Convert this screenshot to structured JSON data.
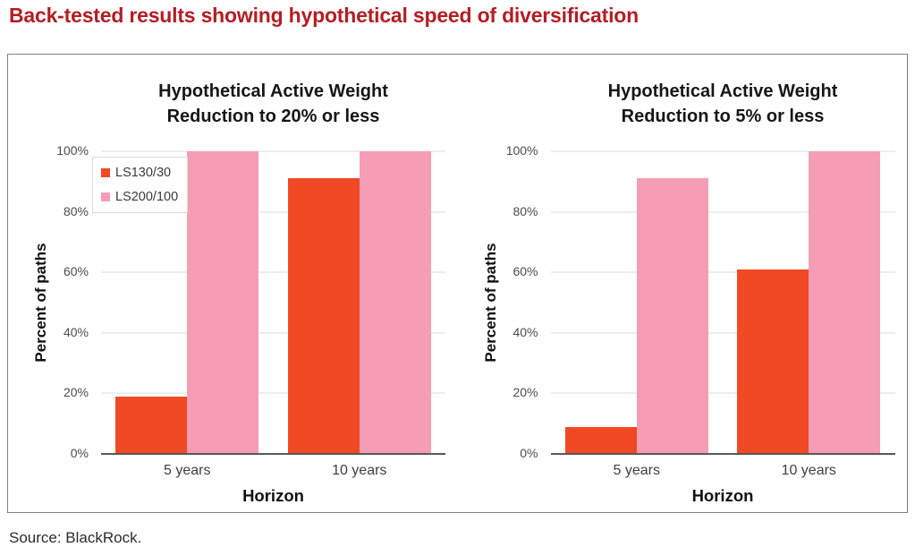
{
  "page": {
    "title": "Back-tested results showing hypothetical speed of diversification",
    "title_color": "#b21e24",
    "source": "Source: BlackRock."
  },
  "colors": {
    "ls130": "#f04923",
    "ls200": "#f49db5",
    "grid": "#ededef",
    "axis": "#57585a"
  },
  "chart_data": [
    {
      "type": "bar",
      "title_lines": [
        "Hypothetical Active Weight",
        "Reduction to 20% or less"
      ],
      "categories": [
        "5 years",
        "10 years"
      ],
      "series": [
        {
          "name": "LS130/30",
          "color": "#f04923",
          "values": [
            19,
            91
          ]
        },
        {
          "name": "LS200/100",
          "color": "#f49db5",
          "values": [
            100,
            100
          ]
        }
      ],
      "xlabel": "Horizon",
      "ylabel": "Percent of paths",
      "ylim": [
        0,
        100
      ],
      "yticks": [
        {
          "label": "0%",
          "value": 0
        },
        {
          "label": "20%",
          "value": 20
        },
        {
          "label": "40%",
          "value": 40
        },
        {
          "label": "60%",
          "value": 60
        },
        {
          "label": "80%",
          "value": 80
        },
        {
          "label": "100%",
          "value": 100
        }
      ],
      "grid": true,
      "legend": true,
      "legend_position": "upper-left"
    },
    {
      "type": "bar",
      "title_lines": [
        "Hypothetical Active Weight",
        "Reduction to 5% or less"
      ],
      "categories": [
        "5 years",
        "10 years"
      ],
      "series": [
        {
          "name": "LS130/30",
          "color": "#f04923",
          "values": [
            9,
            61
          ]
        },
        {
          "name": "LS200/100",
          "color": "#f49db5",
          "values": [
            91,
            100
          ]
        }
      ],
      "xlabel": "Horizon",
      "ylabel": "Percent of paths",
      "ylim": [
        0,
        100
      ],
      "yticks": [
        {
          "label": "0%",
          "value": 0
        },
        {
          "label": "20%",
          "value": 20
        },
        {
          "label": "40%",
          "value": 40
        },
        {
          "label": "60%",
          "value": 60
        },
        {
          "label": "80%",
          "value": 80
        },
        {
          "label": "100%",
          "value": 100
        }
      ],
      "grid": true,
      "legend": false,
      "legend_position": null
    }
  ]
}
